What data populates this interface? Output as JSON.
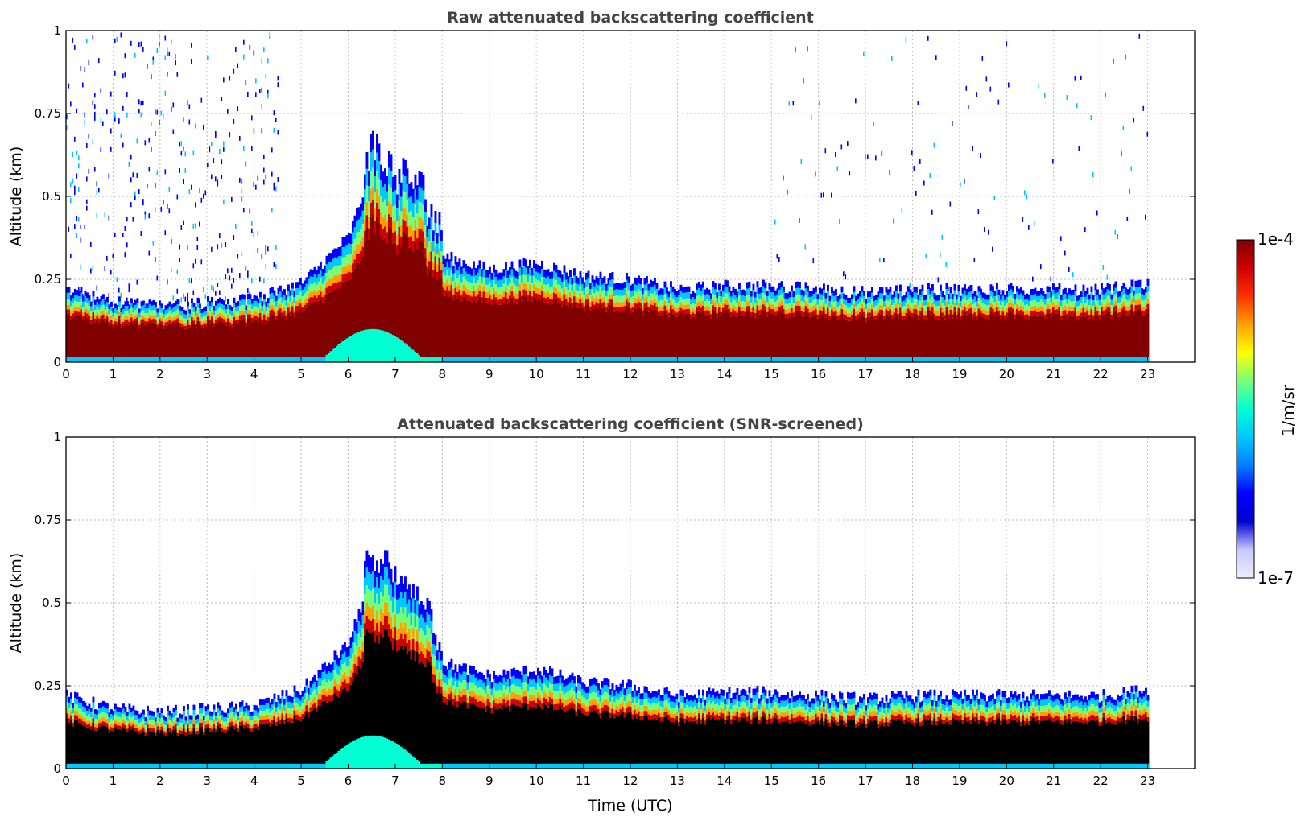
{
  "colors": {
    "jet": [
      "#ececff",
      "#c8c8ff",
      "#0000d0",
      "#0000ff",
      "#0080ff",
      "#00c8ff",
      "#00ffd2",
      "#78ff78",
      "#ffff00",
      "#ffa000",
      "#ff3000",
      "#d00000",
      "#800000"
    ],
    "screened_high": "#000000",
    "title_color": "#444444"
  },
  "chart_data": [
    {
      "type": "heatmap",
      "title": "Raw attenuated backscattering coefficient",
      "xlabel": "",
      "ylabel": "Altitude (km)",
      "xlim": [
        0,
        24
      ],
      "ylim": [
        0,
        1
      ],
      "x_ticks": [
        "0",
        "1",
        "2",
        "3",
        "4",
        "5",
        "6",
        "7",
        "8",
        "9",
        "10",
        "11",
        "12",
        "13",
        "14",
        "15",
        "16",
        "17",
        "18",
        "19",
        "20",
        "21",
        "22",
        "23"
      ],
      "y_ticks": [
        "0",
        "0.25",
        "0.5",
        "0.75",
        "1"
      ],
      "y_tick_values": [
        0,
        0.25,
        0.5,
        0.75,
        1
      ],
      "grid": true,
      "data_extent_hours": [
        0,
        23
      ],
      "boundary_layer_top_km": [
        {
          "t": 0,
          "z": 0.22
        },
        {
          "t": 1,
          "z": 0.18
        },
        {
          "t": 2,
          "z": 0.17
        },
        {
          "t": 3,
          "z": 0.18
        },
        {
          "t": 4,
          "z": 0.19
        },
        {
          "t": 5,
          "z": 0.24
        },
        {
          "t": 6,
          "z": 0.38
        },
        {
          "t": 6.5,
          "z": 0.6
        },
        {
          "t": 7,
          "z": 0.5
        },
        {
          "t": 7.5,
          "z": 0.48
        },
        {
          "t": 8,
          "z": 0.32
        },
        {
          "t": 9,
          "z": 0.28
        },
        {
          "t": 10,
          "z": 0.3
        },
        {
          "t": 11,
          "z": 0.26
        },
        {
          "t": 12,
          "z": 0.25
        },
        {
          "t": 13,
          "z": 0.22
        },
        {
          "t": 14,
          "z": 0.23
        },
        {
          "t": 15,
          "z": 0.23
        },
        {
          "t": 16,
          "z": 0.22
        },
        {
          "t": 17,
          "z": 0.21
        },
        {
          "t": 18,
          "z": 0.22
        },
        {
          "t": 19,
          "z": 0.22
        },
        {
          "t": 20,
          "z": 0.22
        },
        {
          "t": 21,
          "z": 0.22
        },
        {
          "t": 22,
          "z": 0.22
        },
        {
          "t": 23,
          "z": 0.24
        }
      ]
    },
    {
      "type": "heatmap",
      "title": "Attenuated backscattering coefficient (SNR-screened)",
      "xlabel": "Time (UTC)",
      "ylabel": "Altitude (km)",
      "xlim": [
        0,
        24
      ],
      "ylim": [
        0,
        1
      ],
      "x_ticks": [
        "0",
        "1",
        "2",
        "3",
        "4",
        "5",
        "6",
        "7",
        "8",
        "9",
        "10",
        "11",
        "12",
        "13",
        "14",
        "15",
        "16",
        "17",
        "18",
        "19",
        "20",
        "21",
        "22",
        "23"
      ],
      "y_ticks": [
        "0",
        "0.25",
        "0.5",
        "0.75",
        "1"
      ],
      "y_tick_values": [
        0,
        0.25,
        0.5,
        0.75,
        1
      ],
      "grid": true,
      "data_extent_hours": [
        0,
        23
      ],
      "boundary_layer_top_km": [
        {
          "t": 0,
          "z": 0.22
        },
        {
          "t": 1,
          "z": 0.18
        },
        {
          "t": 2,
          "z": 0.17
        },
        {
          "t": 3,
          "z": 0.18
        },
        {
          "t": 4,
          "z": 0.19
        },
        {
          "t": 5,
          "z": 0.24
        },
        {
          "t": 6,
          "z": 0.38
        },
        {
          "t": 6.5,
          "z": 0.6
        },
        {
          "t": 7,
          "z": 0.5
        },
        {
          "t": 7.5,
          "z": 0.48
        },
        {
          "t": 8,
          "z": 0.32
        },
        {
          "t": 9,
          "z": 0.28
        },
        {
          "t": 10,
          "z": 0.3
        },
        {
          "t": 11,
          "z": 0.26
        },
        {
          "t": 12,
          "z": 0.25
        },
        {
          "t": 13,
          "z": 0.22
        },
        {
          "t": 14,
          "z": 0.23
        },
        {
          "t": 15,
          "z": 0.23
        },
        {
          "t": 16,
          "z": 0.22
        },
        {
          "t": 17,
          "z": 0.21
        },
        {
          "t": 18,
          "z": 0.22
        },
        {
          "t": 19,
          "z": 0.22
        },
        {
          "t": 20,
          "z": 0.22
        },
        {
          "t": 21,
          "z": 0.22
        },
        {
          "t": 22,
          "z": 0.22
        },
        {
          "t": 23,
          "z": 0.24
        }
      ]
    }
  ],
  "colorbar": {
    "max_label": "1e-4",
    "min_label": "1e-7",
    "unit_label": "1/m/sr",
    "scale": "log"
  }
}
